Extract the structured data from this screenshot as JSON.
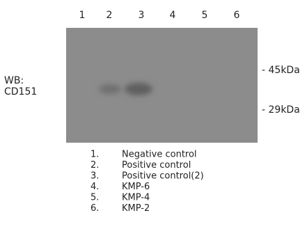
{
  "lanes": [
    "1",
    "2",
    "3",
    "4",
    "5",
    "6"
  ],
  "wb_label": [
    "WB:",
    "CD151"
  ],
  "markers": [
    "- 45kDa",
    "- 29kDa"
  ],
  "legend": [
    {
      "number": "1.",
      "label": "Negative control"
    },
    {
      "number": "2.",
      "label": "Positive control"
    },
    {
      "number": "3.",
      "label": "Positive control(2)"
    },
    {
      "number": "4.",
      "label": "KMP-6"
    },
    {
      "number": "5.",
      "label": "KMP-4"
    },
    {
      "number": "6.",
      "label": "KMP-2"
    }
  ]
}
